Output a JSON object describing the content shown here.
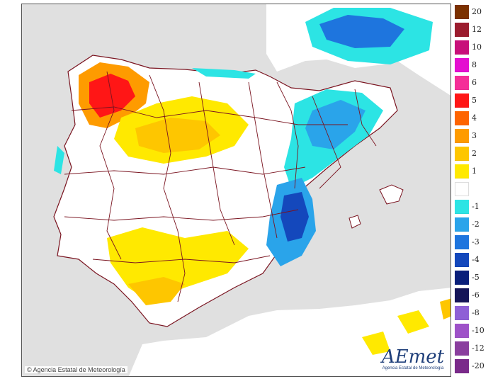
{
  "map": {
    "copyright": "© Agencia Estatal de Meteorología",
    "logo": {
      "mark": "AEmet",
      "subtitle": "Agencia Estatal de Meteorología"
    },
    "colors": {
      "sea": "#e0e0e0",
      "land": "#ffffff",
      "border": "#7a1420"
    }
  },
  "legend": {
    "items": [
      {
        "label": "20",
        "color": "#7b3000"
      },
      {
        "label": "12",
        "color": "#9b1c2e"
      },
      {
        "label": "10",
        "color": "#c8107a"
      },
      {
        "label": "8",
        "color": "#e40fd0"
      },
      {
        "label": "6",
        "color": "#f52e98"
      },
      {
        "label": "5",
        "color": "#ff1616"
      },
      {
        "label": "4",
        "color": "#fe6400"
      },
      {
        "label": "3",
        "color": "#fe9b00"
      },
      {
        "label": "2",
        "color": "#fec600"
      },
      {
        "label": "1",
        "color": "#ffe900"
      },
      {
        "label": "",
        "color": "#ffffff"
      },
      {
        "label": "-1",
        "color": "#2ce4e4"
      },
      {
        "label": "-2",
        "color": "#2aa4ea"
      },
      {
        "label": "-3",
        "color": "#1e75de"
      },
      {
        "label": "-4",
        "color": "#1448bc"
      },
      {
        "label": "-5",
        "color": "#0a1f7a"
      },
      {
        "label": "-6",
        "color": "#151558"
      },
      {
        "label": "-8",
        "color": "#8e60d6"
      },
      {
        "label": "-10",
        "color": "#9e52c8"
      },
      {
        "label": "-12",
        "color": "#8a3e9e"
      },
      {
        "label": "-20",
        "color": "#7a2a8a"
      }
    ]
  }
}
